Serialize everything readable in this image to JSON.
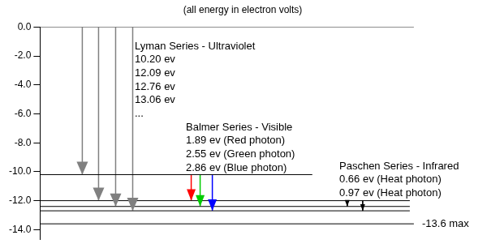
{
  "chart_data": {
    "type": "energy_levels",
    "title": "(all energy in electron volts)",
    "ylim": [
      -14.7,
      0
    ],
    "yticks": [
      {
        "value": 0,
        "label": "0.0"
      },
      {
        "value": -2,
        "label": "-2.0"
      },
      {
        "value": -4,
        "label": "-4.0"
      },
      {
        "value": -6,
        "label": "-6.0"
      },
      {
        "value": -8,
        "label": "-8.0"
      },
      {
        "value": -10,
        "label": "-10.0"
      },
      {
        "value": -12,
        "label": "-12.0"
      },
      {
        "value": -14,
        "label": "-14.0"
      }
    ],
    "levels": [
      0,
      -10.2,
      -12.0,
      -12.4,
      -12.7,
      -13.6
    ],
    "level_label": {
      "value": -13.6,
      "label": "-13.6 max"
    },
    "series": [
      {
        "name": "Lyman Series - Ultraviolet",
        "labels": [
          "10.20 ev",
          "12.09 ev",
          "12.76 ev",
          "13.06 ev",
          "..."
        ],
        "transitions": [
          {
            "from": 0,
            "to": -10.2,
            "color": "#808080"
          },
          {
            "from": 0,
            "to": -12.0,
            "color": "#808080"
          },
          {
            "from": 0,
            "to": -12.4,
            "color": "#808080"
          },
          {
            "from": 0,
            "to": -12.7,
            "color": "#808080"
          }
        ]
      },
      {
        "name": "Balmer Series - Visible",
        "labels": [
          "1.89 ev (Red photon)",
          "2.55 ev (Green photon)",
          "2.86 ev (Blue photon)"
        ],
        "transitions": [
          {
            "from": -10.2,
            "to": -12.0,
            "color": "#ff0000"
          },
          {
            "from": -10.2,
            "to": -12.4,
            "color": "#00cc00"
          },
          {
            "from": -10.2,
            "to": -12.7,
            "color": "#0000ff"
          }
        ]
      },
      {
        "name": "Paschen Series - Infrared",
        "labels": [
          "0.66 ev (Heat photon)",
          "0.97 ev (Heat photon)"
        ],
        "transitions": [
          {
            "from": -12.0,
            "to": -12.4,
            "color": "#000000"
          },
          {
            "from": -12.0,
            "to": -12.7,
            "color": "#000000"
          }
        ]
      }
    ]
  }
}
